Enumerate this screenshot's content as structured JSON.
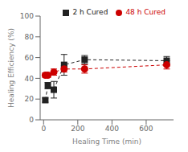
{
  "chart_data": {
    "type": "scatter",
    "xlabel": "Healing Time (min)",
    "ylabel": "Healing Efficiency (%)",
    "x": [
      10,
      25,
      60,
      120,
      240,
      720
    ],
    "xlim": [
      -20,
      760
    ],
    "xticks": [
      0,
      200,
      400,
      600
    ],
    "ylim": [
      0,
      100
    ],
    "yticks": [
      0,
      20,
      40,
      60,
      80,
      100
    ],
    "grid": false,
    "legend": "upper right",
    "series": [
      {
        "name": "2 h Cured",
        "color": "#222222",
        "marker": "square",
        "line_style": "dashed",
        "values": [
          19,
          33,
          29,
          53,
          58,
          57
        ],
        "errors": [
          2,
          3,
          8,
          10,
          4,
          4
        ]
      },
      {
        "name": "48 h Cured",
        "color": "#cc0000",
        "marker": "circle",
        "line_style": "dashed",
        "values": [
          43,
          43,
          46,
          49,
          49,
          53
        ],
        "errors": [
          2,
          2,
          3,
          3,
          4,
          4
        ]
      }
    ]
  }
}
